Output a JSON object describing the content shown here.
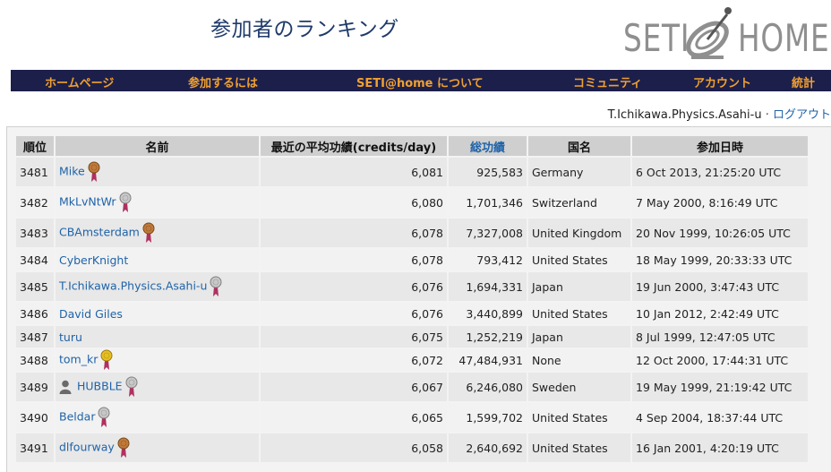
{
  "page": {
    "title": "参加者のランキング"
  },
  "logo": {
    "left_text": "SETI",
    "right_text": "HOME"
  },
  "nav": [
    {
      "label": "ホームページ"
    },
    {
      "label": "参加するには"
    },
    {
      "label": "SETI@home について"
    },
    {
      "label": "コミュニティ"
    },
    {
      "label": "アカウント"
    },
    {
      "label": "統計"
    }
  ],
  "user": {
    "name": "T.Ichikawa.Physics.Asahi-u",
    "separator": "·",
    "logout": "ログアウト"
  },
  "table": {
    "headers": [
      "順位",
      "名前",
      "最近の平均功績(credits/day)",
      "総功績",
      "国名",
      "参加日時"
    ],
    "sorted_column": "総功績",
    "rows": [
      {
        "rank": "3481",
        "name": "Mike",
        "medal": "bronze",
        "avg": "6,081",
        "total": "925,583",
        "country": "Germany",
        "joined": "6 Oct 2013, 21:25:20 UTC"
      },
      {
        "rank": "3482",
        "name": "MkLvNtWr",
        "medal": "silver",
        "avg": "6,080",
        "total": "1,701,346",
        "country": "Switzerland",
        "joined": "7 May 2000, 8:16:49 UTC"
      },
      {
        "rank": "3483",
        "name": "CBAmsterdam",
        "medal": "bronze",
        "avg": "6,078",
        "total": "7,327,008",
        "country": "United Kingdom",
        "joined": "20 Nov 1999, 10:26:05 UTC"
      },
      {
        "rank": "3484",
        "name": "CyberKnight",
        "medal": "",
        "avg": "6,078",
        "total": "793,412",
        "country": "United States",
        "joined": "18 May 1999, 20:33:33 UTC"
      },
      {
        "rank": "3485",
        "name": "T.Ichikawa.Physics.Asahi-u",
        "medal": "silver",
        "avg": "6,076",
        "total": "1,694,331",
        "country": "Japan",
        "joined": "19 Jun 2000, 3:47:43 UTC"
      },
      {
        "rank": "3486",
        "name": "David Giles",
        "medal": "",
        "avg": "6,076",
        "total": "3,440,899",
        "country": "United States",
        "joined": "10 Jan 2012, 2:42:49 UTC"
      },
      {
        "rank": "3487",
        "name": "turu",
        "medal": "",
        "avg": "6,075",
        "total": "1,252,219",
        "country": "Japan",
        "joined": "8 Jul 1999, 12:47:05 UTC"
      },
      {
        "rank": "3488",
        "name": "tom_kr",
        "medal": "gold",
        "avg": "6,072",
        "total": "47,484,931",
        "country": "None",
        "joined": "12 Oct 2000, 17:44:31 UTC"
      },
      {
        "rank": "3489",
        "name": "HUBBLE",
        "medal": "silver",
        "person": true,
        "avg": "6,067",
        "total": "6,246,080",
        "country": "Sweden",
        "joined": "19 May 1999, 21:19:42 UTC"
      },
      {
        "rank": "3490",
        "name": "Beldar",
        "medal": "silver",
        "avg": "6,065",
        "total": "1,599,702",
        "country": "United States",
        "joined": "4 Sep 2004, 18:37:44 UTC"
      },
      {
        "rank": "3491",
        "name": "dlfourway",
        "medal": "bronze",
        "avg": "6,058",
        "total": "2,640,692",
        "country": "United States",
        "joined": "16 Jan 2001, 4:20:19 UTC"
      }
    ]
  },
  "colors": {
    "nav_bg": "#1c1f4a",
    "nav_text": "#f0a030",
    "link": "#1f63a8",
    "title": "#1f3a6a"
  },
  "icons": {
    "medal": "medal-icon",
    "person": "person-icon"
  }
}
